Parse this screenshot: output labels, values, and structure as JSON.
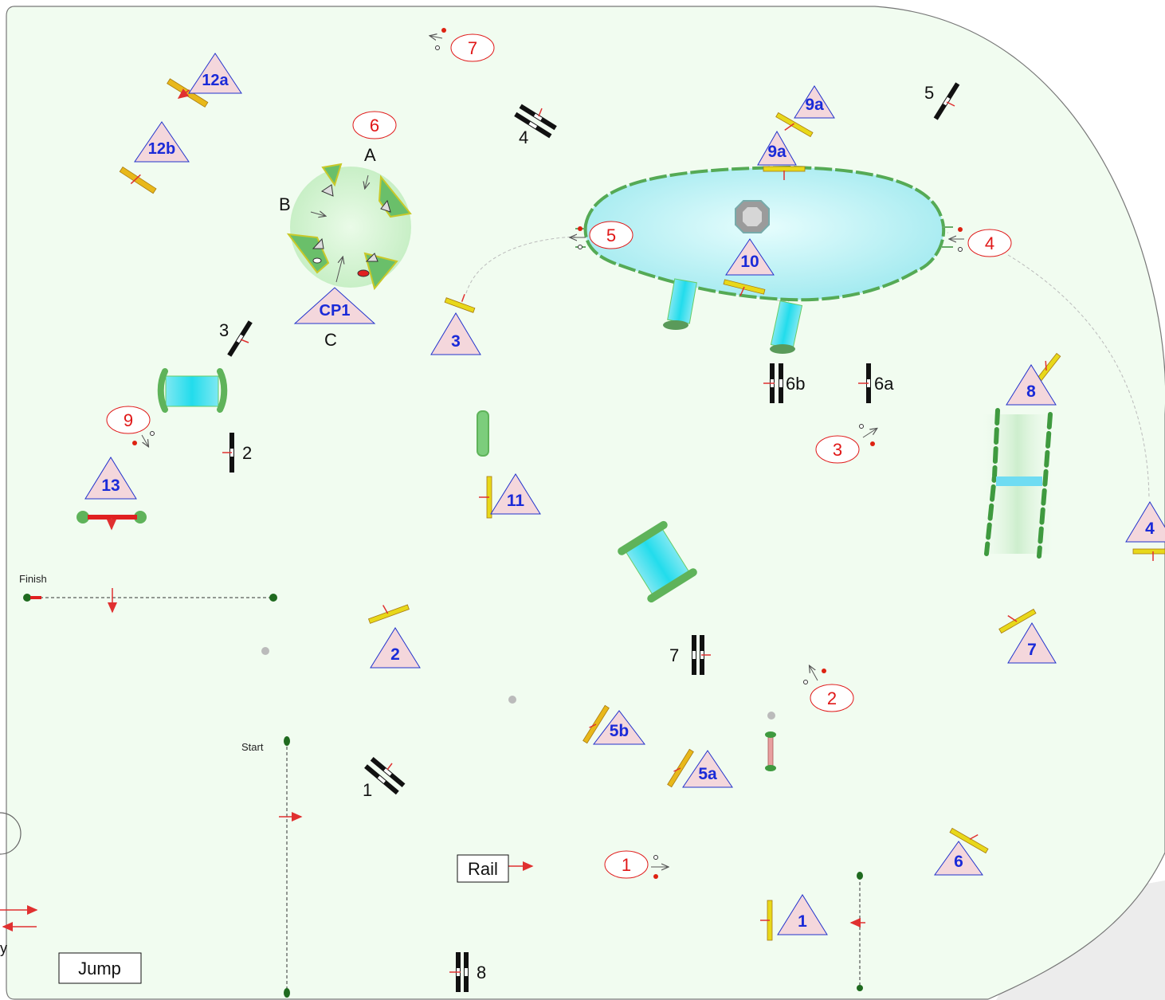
{
  "labels": {
    "finish": "Finish",
    "start": "Start",
    "rail": "Rail",
    "jump": "Jump",
    "edge_y": "y",
    "cp_a": "A",
    "cp_b": "B",
    "cp_c": "C"
  },
  "triangles": [
    {
      "id": "12a",
      "label": "12a"
    },
    {
      "id": "12b",
      "label": "12b"
    },
    {
      "id": "cp1",
      "label": "CP1"
    },
    {
      "id": "3",
      "label": "3"
    },
    {
      "id": "9a-top",
      "label": "9a"
    },
    {
      "id": "9a",
      "label": "9a"
    },
    {
      "id": "10",
      "label": "10"
    },
    {
      "id": "8",
      "label": "8"
    },
    {
      "id": "13",
      "label": "13"
    },
    {
      "id": "11",
      "label": "11"
    },
    {
      "id": "4",
      "label": "4"
    },
    {
      "id": "2",
      "label": "2"
    },
    {
      "id": "7",
      "label": "7"
    },
    {
      "id": "5b",
      "label": "5b"
    },
    {
      "id": "5a",
      "label": "5a"
    },
    {
      "id": "6",
      "label": "6"
    },
    {
      "id": "1",
      "label": "1"
    }
  ],
  "ovals": [
    {
      "id": "7",
      "label": "7"
    },
    {
      "id": "6",
      "label": "6"
    },
    {
      "id": "5",
      "label": "5"
    },
    {
      "id": "4",
      "label": "4"
    },
    {
      "id": "9",
      "label": "9"
    },
    {
      "id": "3",
      "label": "3"
    },
    {
      "id": "2",
      "label": "2"
    },
    {
      "id": "1",
      "label": "1"
    }
  ],
  "jump_numbers": [
    {
      "id": "5",
      "label": "5"
    },
    {
      "id": "4",
      "label": "4"
    },
    {
      "id": "3",
      "label": "3"
    },
    {
      "id": "2",
      "label": "2"
    },
    {
      "id": "6b",
      "label": "6b"
    },
    {
      "id": "6a",
      "label": "6a"
    },
    {
      "id": "7",
      "label": "7"
    },
    {
      "id": "1",
      "label": "1"
    },
    {
      "id": "8",
      "label": "8"
    }
  ],
  "colors": {
    "arena_fill": "#f1fcf0",
    "arena_stroke": "#666666",
    "triangle_fill": "#f4d7dc",
    "triangle_stroke": "#2233cc",
    "triangle_text": "#1a2bd8",
    "oval_text": "#e01818",
    "water": "#bdf4f6",
    "hedge": "#5fb35a",
    "pole_yellow": "#e8d81a",
    "pole_black": "#111111",
    "arrow_red": "#e03030"
  }
}
